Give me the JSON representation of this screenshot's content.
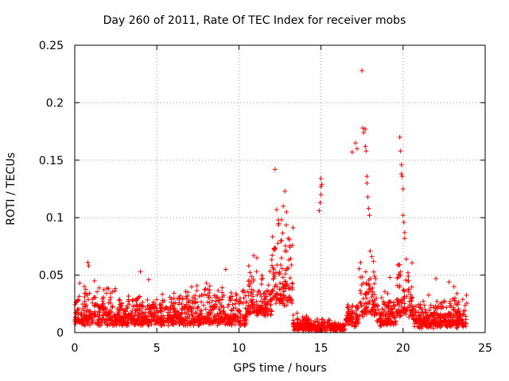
{
  "chart_data": {
    "type": "scatter",
    "title": "Day 260 of 2011, Rate Of TEC Index for receiver mobs",
    "xlabel": "GPS time / hours",
    "ylabel": "ROTI / TECUs",
    "xlim": [
      0,
      25
    ],
    "ylim": [
      0,
      0.25
    ],
    "xticks": [
      0,
      5,
      10,
      15,
      20,
      25
    ],
    "xtick_labels": [
      "0",
      "5",
      "10",
      "15",
      "20",
      "25"
    ],
    "yticks": [
      0,
      0.05,
      0.1,
      0.15,
      0.2,
      0.25
    ],
    "ytick_labels": [
      "0",
      "0.05",
      "0.1",
      "0.15",
      "0.2",
      "0.25"
    ],
    "grid": true,
    "marker": "+",
    "color": "#ff0000",
    "x_range_of_data": [
      0,
      23.9
    ],
    "series": [
      {
        "name": "ROTI",
        "points": [
          [
            0.3,
            0.043
          ],
          [
            0.8,
            0.061
          ],
          [
            0.85,
            0.058
          ],
          [
            1.2,
            0.045
          ],
          [
            4.0,
            0.053
          ],
          [
            4.5,
            0.046
          ],
          [
            9.2,
            0.055
          ],
          [
            10.6,
            0.058
          ],
          [
            10.9,
            0.067
          ],
          [
            11.1,
            0.065
          ],
          [
            12.2,
            0.142
          ],
          [
            12.3,
            0.107
          ],
          [
            12.4,
            0.098
          ],
          [
            12.6,
            0.08
          ],
          [
            12.7,
            0.11
          ],
          [
            12.8,
            0.123
          ],
          [
            12.9,
            0.105
          ],
          [
            13.0,
            0.082
          ],
          [
            14.9,
            0.106
          ],
          [
            14.95,
            0.113
          ],
          [
            15.0,
            0.12
          ],
          [
            15.0,
            0.127
          ],
          [
            15.0,
            0.134
          ],
          [
            15.05,
            0.129
          ],
          [
            16.9,
            0.157
          ],
          [
            17.1,
            0.165
          ],
          [
            17.2,
            0.16
          ],
          [
            17.5,
            0.228
          ],
          [
            17.55,
            0.178
          ],
          [
            17.6,
            0.174
          ],
          [
            17.7,
            0.177
          ],
          [
            17.7,
            0.162
          ],
          [
            17.75,
            0.158
          ],
          [
            17.8,
            0.136
          ],
          [
            17.8,
            0.13
          ],
          [
            17.85,
            0.118
          ],
          [
            17.9,
            0.108
          ],
          [
            17.95,
            0.102
          ],
          [
            18.0,
            0.071
          ],
          [
            18.1,
            0.066
          ],
          [
            18.2,
            0.062
          ],
          [
            19.2,
            0.048
          ],
          [
            19.8,
            0.17
          ],
          [
            19.85,
            0.158
          ],
          [
            19.9,
            0.146
          ],
          [
            19.9,
            0.138
          ],
          [
            19.95,
            0.136
          ],
          [
            20.0,
            0.125
          ],
          [
            20.0,
            0.102
          ],
          [
            20.05,
            0.096
          ],
          [
            20.1,
            0.087
          ],
          [
            20.1,
            0.082
          ],
          [
            20.2,
            0.064
          ],
          [
            20.3,
            0.052
          ],
          [
            22.0,
            0.047
          ],
          [
            22.8,
            0.044
          ],
          [
            23.1,
            0.04
          ]
        ]
      }
    ]
  }
}
